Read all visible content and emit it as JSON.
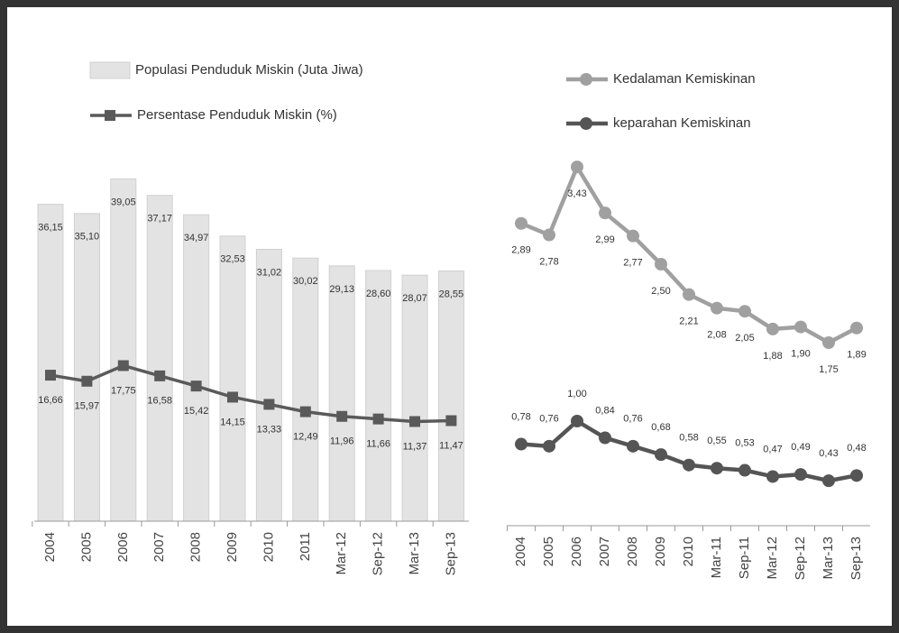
{
  "chart_data": [
    {
      "type": "combo",
      "categories": [
        "2004",
        "2005",
        "2006",
        "2007",
        "2008",
        "2009",
        "2010",
        "2011",
        "Mar-12",
        "Sep-12",
        "Mar-13",
        "Sep-13"
      ],
      "series": [
        {
          "name": "Populasi Penduduk Miskin (Juta Jiwa)",
          "type": "bar",
          "color": "#e3e3e3",
          "values": [
            36.15,
            35.1,
            39.05,
            37.17,
            34.97,
            32.53,
            31.02,
            30.02,
            29.13,
            28.6,
            28.07,
            28.55
          ],
          "value_labels": [
            "36,15",
            "35,10",
            "39,05",
            "37,17",
            "34,97",
            "32,53",
            "31,02",
            "30,02",
            "29,13",
            "28,60",
            "28,07",
            "28,55"
          ]
        },
        {
          "name": "Persentase Penduduk Miskin (%)",
          "type": "line",
          "color": "#5a5a5a",
          "marker": "square",
          "values": [
            16.66,
            15.97,
            17.75,
            16.58,
            15.42,
            14.15,
            13.33,
            12.49,
            11.96,
            11.66,
            11.37,
            11.47
          ],
          "value_labels": [
            "16,66",
            "15,97",
            "17,75",
            "16,58",
            "15,42",
            "14,15",
            "13,33",
            "12,49",
            "11,96",
            "11,66",
            "11,37",
            "11,47"
          ]
        }
      ]
    },
    {
      "type": "line",
      "categories": [
        "2004",
        "2005",
        "2006",
        "2007",
        "2008",
        "2009",
        "2010",
        "Mar-11",
        "Sep-11",
        "Mar-12",
        "Sep-12",
        "Mar-13",
        "Sep-13"
      ],
      "series": [
        {
          "name": "Kedalaman Kemiskinan",
          "color": "#a0a0a0",
          "marker": "circle",
          "values": [
            2.89,
            2.78,
            3.43,
            2.99,
            2.77,
            2.5,
            2.21,
            2.08,
            2.05,
            1.88,
            1.9,
            1.75,
            1.89
          ],
          "value_labels": [
            "2,89",
            "2,78",
            "3,43",
            "2,99",
            "2,77",
            "2,50",
            "2,21",
            "2,08",
            "2,05",
            "1,88",
            "1,90",
            "1,75",
            "1,89"
          ]
        },
        {
          "name": "keparahan Kemiskinan",
          "color": "#555555",
          "marker": "circle",
          "values": [
            0.78,
            0.76,
            1.0,
            0.84,
            0.76,
            0.68,
            0.58,
            0.55,
            0.53,
            0.47,
            0.49,
            0.43,
            0.48
          ],
          "value_labels": [
            "0,78",
            "0,76",
            "1,00",
            "0,84",
            "0,76",
            "0,68",
            "0,58",
            "0,55",
            "0,53",
            "0,47",
            "0,49",
            "0,43",
            "0,48"
          ]
        }
      ]
    }
  ]
}
